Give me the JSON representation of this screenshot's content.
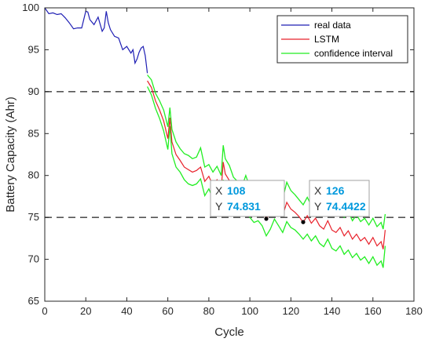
{
  "chart_data": {
    "type": "line",
    "xlabel": "Cycle",
    "ylabel": "Battery Capacity (Ahr)",
    "xlim": [
      0,
      180
    ],
    "ylim": [
      65,
      100
    ],
    "xticks": [
      0,
      20,
      40,
      60,
      80,
      100,
      120,
      140,
      160,
      180
    ],
    "yticks": [
      65,
      70,
      75,
      80,
      85,
      90,
      95,
      100
    ],
    "grid": false,
    "legend_position": "top-right",
    "colors": {
      "real": "#1f1fb4",
      "lstm": "#e8202a",
      "ci": "#22ee22",
      "threshold": "#555555",
      "tip_value": "#0099dd"
    },
    "threshold_lines": [
      90,
      75
    ],
    "series": [
      {
        "name": "real data",
        "x": [
          0,
          2,
          4,
          6,
          8,
          10,
          12,
          14,
          16,
          18,
          20,
          21,
          22,
          24,
          26,
          28,
          29,
          30,
          31,
          32,
          34,
          36,
          38,
          40,
          42,
          43,
          44,
          45,
          46,
          47,
          48,
          49,
          50
        ],
        "y": [
          100,
          99.3,
          99.4,
          99.2,
          99.3,
          98.8,
          98.2,
          97.5,
          97.6,
          97.6,
          99.6,
          99.5,
          98.6,
          98.0,
          98.9,
          97.2,
          97.6,
          99.6,
          98.2,
          97.4,
          96.6,
          96.4,
          95.0,
          95.4,
          94.6,
          95.0,
          93.4,
          93.9,
          94.7,
          95.2,
          95.4,
          94.3,
          92.2
        ]
      },
      {
        "name": "LSTM",
        "x": [
          50,
          52,
          54,
          56,
          58,
          60,
          61,
          62,
          64,
          66,
          68,
          70,
          72,
          74,
          76,
          78,
          80,
          82,
          84,
          86,
          87,
          88,
          90,
          92,
          94,
          96,
          98,
          100,
          102,
          104,
          106,
          108,
          110,
          112,
          114,
          116,
          118,
          120,
          122,
          124,
          126,
          128,
          130,
          132,
          134,
          136,
          138,
          140,
          142,
          144,
          146,
          148,
          150,
          152,
          154,
          156,
          158,
          160,
          162,
          164,
          165,
          166
        ],
        "y": [
          91.3,
          90.5,
          88.9,
          87.8,
          86.5,
          84.4,
          86.9,
          84.0,
          82.5,
          81.8,
          81.0,
          80.7,
          80.4,
          80.6,
          81.0,
          79.3,
          79.9,
          78.8,
          79.5,
          78.3,
          81.6,
          80.2,
          79.4,
          77.9,
          77.4,
          76.9,
          77.8,
          76.8,
          76.3,
          76.6,
          75.9,
          74.8,
          75.6,
          76.7,
          75.9,
          75.2,
          76.8,
          76.0,
          75.6,
          75.1,
          74.4,
          75.2,
          74.3,
          74.9,
          74.0,
          73.6,
          74.6,
          73.5,
          73.2,
          73.8,
          72.8,
          73.4,
          72.4,
          73.0,
          72.2,
          72.6,
          71.8,
          72.6,
          71.6,
          72.1,
          71.2,
          73.5
        ]
      },
      {
        "name": "confidence interval",
        "x": [
          50,
          52,
          54,
          56,
          58,
          60,
          61,
          62,
          64,
          66,
          68,
          70,
          72,
          74,
          76,
          78,
          80,
          82,
          84,
          86,
          87,
          88,
          90,
          92,
          94,
          96,
          98,
          100,
          102,
          104,
          106,
          108,
          110,
          112,
          114,
          116,
          118,
          120,
          122,
          124,
          126,
          128,
          130,
          132,
          134,
          136,
          138,
          140,
          142,
          144,
          146,
          148,
          150,
          152,
          154,
          156,
          158,
          160,
          162,
          164,
          165,
          166
        ],
        "y_upper": [
          92.0,
          91.4,
          89.8,
          88.9,
          87.8,
          85.8,
          88.1,
          85.5,
          84.0,
          83.2,
          82.6,
          82.4,
          82.0,
          82.2,
          83.3,
          81.0,
          81.3,
          80.4,
          81.1,
          80.0,
          83.6,
          82.0,
          81.2,
          79.8,
          79.3,
          78.6,
          80.0,
          78.6,
          78.1,
          78.6,
          77.8,
          76.8,
          77.6,
          78.6,
          77.8,
          77.2,
          79.2,
          78.2,
          77.7,
          77.1,
          76.5,
          77.4,
          76.4,
          77.0,
          76.1,
          75.7,
          76.8,
          75.7,
          75.4,
          76.0,
          75.0,
          75.7,
          74.6,
          75.3,
          74.5,
          74.9,
          74.1,
          74.9,
          73.9,
          74.4,
          73.6,
          75.4
        ],
        "y_lower": [
          90.6,
          89.6,
          88.0,
          86.8,
          85.3,
          83.1,
          85.9,
          82.6,
          81.0,
          80.4,
          79.5,
          79.0,
          78.8,
          79.0,
          79.6,
          77.6,
          78.4,
          77.2,
          77.9,
          76.8,
          79.5,
          78.4,
          77.6,
          76.0,
          75.5,
          75.2,
          75.7,
          75.0,
          74.4,
          74.6,
          74.0,
          72.8,
          73.6,
          74.8,
          74.0,
          73.2,
          74.5,
          73.8,
          73.5,
          73.0,
          72.4,
          73.0,
          72.2,
          72.8,
          71.9,
          71.5,
          72.4,
          71.3,
          71.0,
          71.6,
          70.6,
          71.1,
          70.2,
          70.7,
          69.9,
          70.3,
          69.5,
          70.3,
          69.3,
          69.8,
          69.0,
          71.6
        ]
      }
    ],
    "datatips": [
      {
        "x": 108,
        "y": 74.831,
        "x_label": "X",
        "y_label": "Y",
        "x_text": "108",
        "y_text": "74.831"
      },
      {
        "x": 126,
        "y": 74.4422,
        "x_label": "X",
        "y_label": "Y",
        "x_text": "126",
        "y_text": "74.4422"
      }
    ],
    "legend": [
      "real data",
      "LSTM",
      "confidence interval"
    ]
  }
}
